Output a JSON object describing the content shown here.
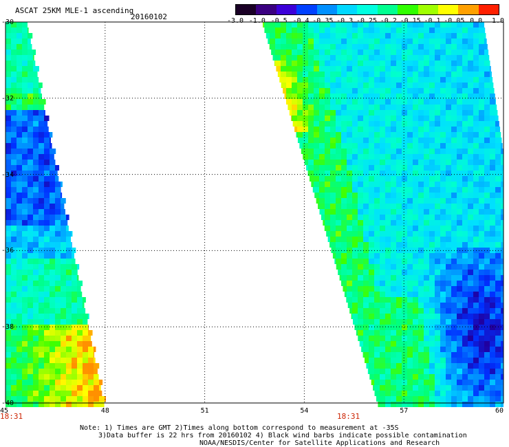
{
  "header": {
    "title": "ASCAT 25KM MLE-1 ascending",
    "date": "20160102"
  },
  "colorbar": {
    "tick_labels": [
      "-3.0",
      "-1.0",
      "-0.5",
      "-0.4",
      "-0.35",
      "-0.3",
      "-0.25",
      "-0.2",
      "-0.15",
      "-0.1",
      "-0.05",
      "0.0",
      "1.0"
    ],
    "colors": [
      "#1a0026",
      "#3a0080",
      "#3c00d8",
      "#0040ff",
      "#0090ff",
      "#00d8ff",
      "#00ffe0",
      "#00ff90",
      "#30ff00",
      "#a0ff00",
      "#ffff00",
      "#ffa000",
      "#ff2000"
    ]
  },
  "map": {
    "lon_ticks": [
      "45",
      "48",
      "51",
      "54",
      "57",
      "60"
    ],
    "lat_ticks": [
      "-30",
      "-32",
      "-34",
      "-36",
      "-38",
      "-40"
    ],
    "lon_range": [
      45,
      60
    ],
    "lat_range": [
      -40,
      -30
    ],
    "swath_times": [
      "18:31",
      "18:31"
    ]
  },
  "footer": {
    "line1": "Note: 1) Times are GMT 2)Times along bottom correspond to measurement at -35S",
    "line2": "3)Data buffer is 22 hrs from 20160102 4) Black wind barbs indicate possible contamination",
    "line3": "NOAA/NESDIS/Center for Satellite Applications and Research"
  }
}
